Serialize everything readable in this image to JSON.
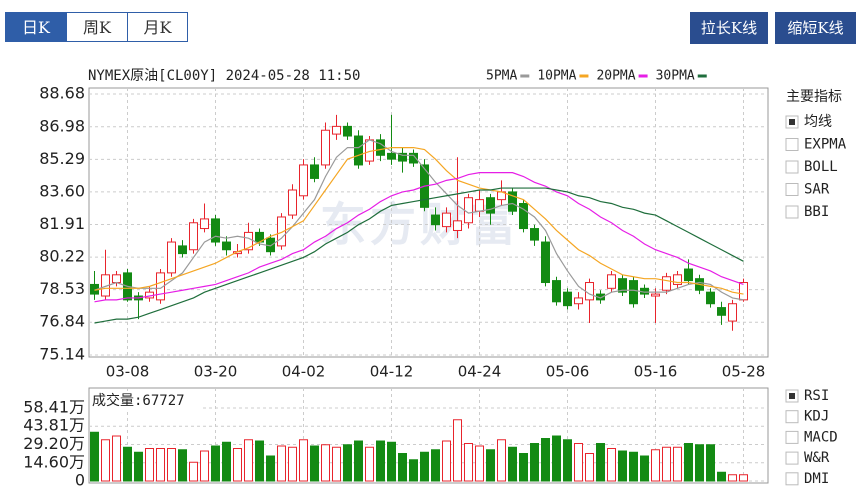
{
  "tabs": [
    "日K",
    "周K",
    "月K"
  ],
  "active_tab": 0,
  "buttons": [
    "拉长K线",
    "缩短K线"
  ],
  "watermark": "东方财富",
  "main_indicators": {
    "title": "主要指标",
    "items": [
      {
        "label": "均线",
        "checked": true
      },
      {
        "label": "EXPMA",
        "checked": false
      },
      {
        "label": "BOLL",
        "checked": false
      },
      {
        "label": "SAR",
        "checked": false
      },
      {
        "label": "BBI",
        "checked": false
      }
    ]
  },
  "sub_indicators": {
    "items": [
      {
        "label": "RSI",
        "checked": true
      },
      {
        "label": "KDJ",
        "checked": false
      },
      {
        "label": "MACD",
        "checked": false
      },
      {
        "label": "W&R",
        "checked": false
      },
      {
        "label": "DMI",
        "checked": false
      }
    ]
  },
  "chart_data": [
    {
      "type": "candlestick",
      "title": "NYMEX原油[CL00Y] 2024-05-28 11:50",
      "up_color": "#e8242c",
      "down_color": "#138a13",
      "grid": true,
      "categories": [
        null,
        null,
        null,
        "03-08",
        null,
        null,
        null,
        null,
        null,
        null,
        null,
        "03-20",
        null,
        null,
        null,
        null,
        null,
        null,
        null,
        "04-02",
        null,
        null,
        null,
        null,
        null,
        null,
        null,
        "04-12",
        null,
        null,
        null,
        null,
        null,
        null,
        null,
        "04-24",
        null,
        null,
        null,
        null,
        null,
        null,
        null,
        "05-06",
        null,
        null,
        null,
        null,
        null,
        null,
        null,
        "05-16",
        null,
        null,
        null,
        null,
        null,
        null,
        null,
        "05-28"
      ],
      "open": [
        78.8,
        78.2,
        78.9,
        79.4,
        78.2,
        78.1,
        78.0,
        79.4,
        80.8,
        80.6,
        81.7,
        82.2,
        81.0,
        80.4,
        80.6,
        81.5,
        81.2,
        80.8,
        82.4,
        83.4,
        85.0,
        85.0,
        86.6,
        87.0,
        86.5,
        85.2,
        86.3,
        85.6,
        85.6,
        85.6,
        85.0,
        82.4,
        81.8,
        81.6,
        82.0,
        82.6,
        83.3,
        83.2,
        83.6,
        83.0,
        81.7,
        81.0,
        79.0,
        78.4,
        77.8,
        78.0,
        78.3,
        78.6,
        79.1,
        79.0,
        78.6,
        78.2,
        78.5,
        78.8,
        79.6,
        79.1,
        78.4,
        77.6,
        76.9,
        78.0
      ],
      "high": [
        79.5,
        80.6,
        79.5,
        79.6,
        78.4,
        78.7,
        79.6,
        81.2,
        81.1,
        82.2,
        83.0,
        82.4,
        81.3,
        80.9,
        82.0,
        81.7,
        81.4,
        82.5,
        84.0,
        85.3,
        85.4,
        87.2,
        87.6,
        87.2,
        86.8,
        86.5,
        86.6,
        87.6,
        85.9,
        85.8,
        85.3,
        82.8,
        82.8,
        85.4,
        83.5,
        83.7,
        83.5,
        84.2,
        83.8,
        83.2,
        81.9,
        81.3,
        79.2,
        78.6,
        78.4,
        79.1,
        78.5,
        79.5,
        79.3,
        79.2,
        78.8,
        78.6,
        79.4,
        79.5,
        80.1,
        79.3,
        78.6,
        77.9,
        78.0,
        79.1
      ],
      "low": [
        78.0,
        78.0,
        78.7,
        77.9,
        77.0,
        77.9,
        77.8,
        79.2,
        80.2,
        80.4,
        81.5,
        80.8,
        80.3,
        80.2,
        80.4,
        80.8,
        80.3,
        80.6,
        82.2,
        83.2,
        84.1,
        84.8,
        86.3,
        86.3,
        84.8,
        85.0,
        85.2,
        85.0,
        84.6,
        84.9,
        82.6,
        81.6,
        81.5,
        81.2,
        81.7,
        82.3,
        81.9,
        82.9,
        82.4,
        81.5,
        80.8,
        78.7,
        77.7,
        77.5,
        77.5,
        76.8,
        77.8,
        78.4,
        78.2,
        77.6,
        78.1,
        76.8,
        78.3,
        78.6,
        78.8,
        78.3,
        77.6,
        76.7,
        76.4,
        77.9
      ],
      "close": [
        78.3,
        79.3,
        79.3,
        78.0,
        78.0,
        78.4,
        79.4,
        81.0,
        80.4,
        82.0,
        82.2,
        81.0,
        80.6,
        80.5,
        81.5,
        81.0,
        80.5,
        82.3,
        83.7,
        85.0,
        84.3,
        86.8,
        87.0,
        86.5,
        85.0,
        86.3,
        85.5,
        85.3,
        85.2,
        85.1,
        82.8,
        81.9,
        82.5,
        82.1,
        83.3,
        83.2,
        82.5,
        83.6,
        82.6,
        81.7,
        81.1,
        78.9,
        77.9,
        77.7,
        78.1,
        78.9,
        78.0,
        79.3,
        78.4,
        77.8,
        78.3,
        78.3,
        79.2,
        79.3,
        79.0,
        78.5,
        77.8,
        77.2,
        77.8,
        78.9
      ],
      "series": [
        {
          "name": "5PMA",
          "color": "#9a9a9a",
          "values": [
            78.5,
            78.7,
            78.9,
            78.7,
            78.6,
            78.6,
            78.6,
            79.0,
            79.4,
            80.2,
            81.0,
            81.3,
            81.2,
            81.3,
            81.2,
            80.9,
            80.8,
            81.2,
            81.8,
            82.5,
            83.2,
            84.4,
            85.4,
            85.9,
            85.9,
            86.3,
            86.1,
            85.7,
            85.5,
            85.5,
            84.8,
            84.1,
            83.5,
            82.9,
            82.5,
            82.6,
            82.7,
            82.9,
            83.0,
            82.7,
            82.3,
            81.6,
            80.4,
            79.5,
            78.7,
            78.3,
            78.1,
            78.4,
            78.5,
            78.5,
            78.4,
            78.4,
            78.4,
            78.6,
            78.8,
            78.9,
            78.8,
            78.4,
            78.1,
            78.0
          ]
        },
        {
          "name": "10PMA",
          "color": "#f5a623",
          "values": [
            78.5,
            78.6,
            78.6,
            78.6,
            78.6,
            78.7,
            78.9,
            79.1,
            79.3,
            79.5,
            79.7,
            79.9,
            80.2,
            80.5,
            80.7,
            81.0,
            81.3,
            81.5,
            81.8,
            82.1,
            82.9,
            83.7,
            84.5,
            85.3,
            85.5,
            85.7,
            85.8,
            85.9,
            85.9,
            85.9,
            85.8,
            85.3,
            84.7,
            84.2,
            84.0,
            83.8,
            83.7,
            83.6,
            83.4,
            83.2,
            82.7,
            82.2,
            81.6,
            81.1,
            80.6,
            80.3,
            79.9,
            79.6,
            79.3,
            79.2,
            79.1,
            79.1,
            79.0,
            78.9,
            78.9,
            78.8,
            78.7,
            78.6,
            78.4,
            78.3
          ]
        },
        {
          "name": "20PMA",
          "color": "#e61ee6",
          "values": [
            77.9,
            78.0,
            78.0,
            78.1,
            78.1,
            78.2,
            78.3,
            78.4,
            78.5,
            78.6,
            78.7,
            78.8,
            79.0,
            79.2,
            79.4,
            79.7,
            79.9,
            80.1,
            80.4,
            80.6,
            81.0,
            81.3,
            81.7,
            82.0,
            82.4,
            82.7,
            83.1,
            83.4,
            83.6,
            83.7,
            83.9,
            84.0,
            84.2,
            84.3,
            84.5,
            84.6,
            84.6,
            84.6,
            84.6,
            84.4,
            84.1,
            83.9,
            83.6,
            83.4,
            83.0,
            82.7,
            82.3,
            82.0,
            81.6,
            81.3,
            80.9,
            80.6,
            80.4,
            80.2,
            79.9,
            79.7,
            79.5,
            79.2,
            79.0,
            78.8
          ]
        },
        {
          "name": "30PMA",
          "color": "#1f6e3c",
          "values": [
            76.8,
            76.9,
            77.0,
            77.0,
            77.1,
            77.3,
            77.5,
            77.7,
            77.9,
            78.1,
            78.4,
            78.6,
            78.8,
            79.0,
            79.2,
            79.4,
            79.6,
            79.8,
            80.0,
            80.2,
            80.5,
            80.9,
            81.2,
            81.5,
            81.9,
            82.2,
            82.6,
            82.9,
            83.0,
            83.1,
            83.2,
            83.3,
            83.4,
            83.5,
            83.6,
            83.7,
            83.7,
            83.8,
            83.8,
            83.8,
            83.8,
            83.8,
            83.7,
            83.6,
            83.4,
            83.3,
            83.1,
            83.0,
            82.8,
            82.7,
            82.5,
            82.4,
            82.1,
            81.8,
            81.5,
            81.2,
            80.9,
            80.6,
            80.3,
            80.0
          ]
        }
      ],
      "ylim": [
        75.14,
        88.68
      ],
      "yticks": [
        75.14,
        76.84,
        78.53,
        80.22,
        81.91,
        {
          "value": 83.6,
          "label": "83.60"
        },
        85.29,
        86.98,
        88.68
      ]
    },
    {
      "type": "bar",
      "title": "成交量:67727",
      "grid": true,
      "values": [
        39,
        33,
        36,
        27,
        23,
        26,
        26,
        26,
        25,
        15,
        24,
        28,
        31,
        26,
        33,
        32,
        20,
        28,
        27,
        33,
        28,
        29,
        27,
        29,
        32,
        27,
        32,
        31,
        22,
        17,
        23,
        25,
        32,
        49,
        30,
        28,
        25,
        33,
        27,
        22,
        30,
        34,
        36,
        33,
        30,
        22,
        30,
        26,
        24,
        23,
        20,
        25,
        27,
        27,
        30,
        29,
        29,
        7,
        5,
        5
      ],
      "ylim": [
        0,
        58.41
      ],
      "yticks": [
        0,
        {
          "value": 14.6,
          "label": "14.60万"
        },
        {
          "value": 29.2,
          "label": "29.20万"
        },
        {
          "value": 43.81,
          "label": "43.81万"
        },
        {
          "value": 58.41,
          "label": "58.41万"
        }
      ]
    }
  ]
}
